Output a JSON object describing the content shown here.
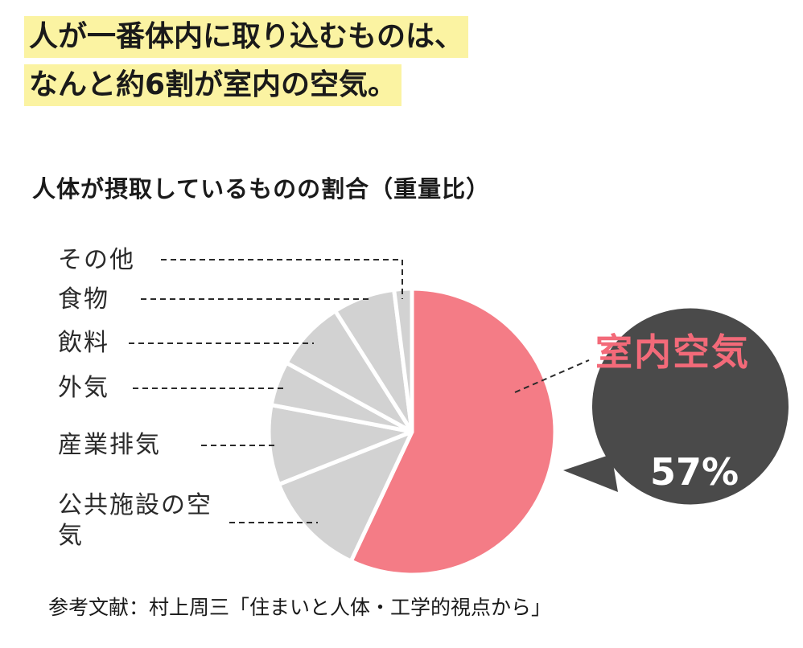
{
  "headline": {
    "line1": "人が一番体内に取り込むものは、",
    "line2": "なんと約6割が室内の空気。"
  },
  "source": "参考文献：村上周三「住まいと人体・工学的視点から」",
  "chart_data": {
    "type": "pie",
    "title": "人体が摂取しているものの割合（重量比）",
    "slices": [
      {
        "label": "室内空気",
        "value": 57,
        "color": "#f47c86"
      },
      {
        "label": "公共施設の空気",
        "value": 12,
        "color": "#d2d2d2"
      },
      {
        "label": "産業排気",
        "value": 9,
        "color": "#d2d2d2"
      },
      {
        "label": "外気",
        "value": 5,
        "color": "#d2d2d2"
      },
      {
        "label": "飲料",
        "value": 8,
        "color": "#d2d2d2"
      },
      {
        "label": "食物",
        "value": 7,
        "color": "#d2d2d2"
      },
      {
        "label": "その他",
        "value": 2,
        "color": "#d2d2d2"
      }
    ],
    "highlight": {
      "label": "室内空気",
      "value_text": "57%"
    },
    "bubble_color": "#4a4a4a",
    "highlight_color": "#f36a79"
  }
}
